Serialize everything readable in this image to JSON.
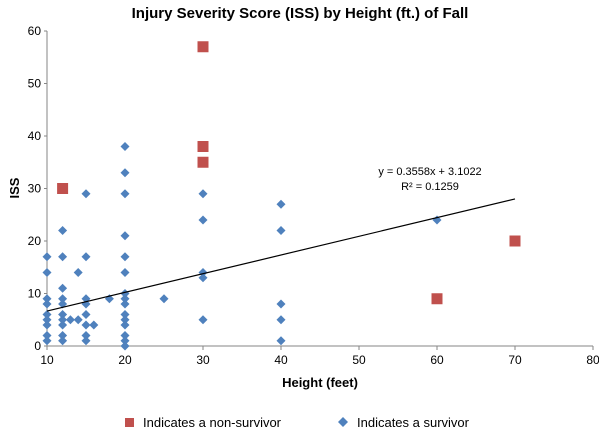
{
  "chart_data": {
    "type": "scatter",
    "title": "Injury Severity Score (ISS) by Height (ft.) of Fall",
    "xlabel": "Height (feet)",
    "ylabel": "ISS",
    "xlim": [
      10,
      80
    ],
    "ylim": [
      0,
      60
    ],
    "xticks": [
      "10",
      "20",
      "30",
      "40",
      "50",
      "60",
      "70",
      "80"
    ],
    "yticks": [
      "0",
      "10",
      "20",
      "30",
      "40",
      "50",
      "60"
    ],
    "grid": false,
    "legend_position": "bottom",
    "series": [
      {
        "name": "Indicates a non-survivor",
        "marker": "square",
        "color": "#c0504d",
        "points": [
          {
            "x": 12,
            "y": 30
          },
          {
            "x": 30,
            "y": 57
          },
          {
            "x": 30,
            "y": 38
          },
          {
            "x": 30,
            "y": 35
          },
          {
            "x": 60,
            "y": 9
          },
          {
            "x": 70,
            "y": 20
          }
        ]
      },
      {
        "name": "Indicates a survivor",
        "marker": "diamond",
        "color": "#4f81bd",
        "points": [
          {
            "x": 10,
            "y": 17
          },
          {
            "x": 10,
            "y": 14
          },
          {
            "x": 10,
            "y": 9
          },
          {
            "x": 10,
            "y": 8
          },
          {
            "x": 10,
            "y": 6
          },
          {
            "x": 10,
            "y": 5
          },
          {
            "x": 10,
            "y": 4
          },
          {
            "x": 10,
            "y": 2
          },
          {
            "x": 10,
            "y": 1
          },
          {
            "x": 12,
            "y": 22
          },
          {
            "x": 12,
            "y": 17
          },
          {
            "x": 12,
            "y": 11
          },
          {
            "x": 12,
            "y": 9
          },
          {
            "x": 12,
            "y": 8
          },
          {
            "x": 12,
            "y": 6
          },
          {
            "x": 12,
            "y": 5
          },
          {
            "x": 12,
            "y": 4
          },
          {
            "x": 12,
            "y": 2
          },
          {
            "x": 12,
            "y": 1
          },
          {
            "x": 13,
            "y": 5
          },
          {
            "x": 14,
            "y": 14
          },
          {
            "x": 14,
            "y": 5
          },
          {
            "x": 15,
            "y": 29
          },
          {
            "x": 15,
            "y": 17
          },
          {
            "x": 15,
            "y": 9
          },
          {
            "x": 15,
            "y": 8
          },
          {
            "x": 15,
            "y": 6
          },
          {
            "x": 15,
            "y": 4
          },
          {
            "x": 15,
            "y": 2
          },
          {
            "x": 15,
            "y": 1
          },
          {
            "x": 16,
            "y": 4
          },
          {
            "x": 18,
            "y": 9
          },
          {
            "x": 20,
            "y": 38
          },
          {
            "x": 20,
            "y": 33
          },
          {
            "x": 20,
            "y": 29
          },
          {
            "x": 20,
            "y": 21
          },
          {
            "x": 20,
            "y": 17
          },
          {
            "x": 20,
            "y": 14
          },
          {
            "x": 20,
            "y": 10
          },
          {
            "x": 20,
            "y": 9
          },
          {
            "x": 20,
            "y": 8
          },
          {
            "x": 20,
            "y": 6
          },
          {
            "x": 20,
            "y": 5
          },
          {
            "x": 20,
            "y": 4
          },
          {
            "x": 20,
            "y": 2
          },
          {
            "x": 20,
            "y": 1
          },
          {
            "x": 20,
            "y": 0
          },
          {
            "x": 25,
            "y": 9
          },
          {
            "x": 30,
            "y": 29
          },
          {
            "x": 30,
            "y": 24
          },
          {
            "x": 30,
            "y": 14
          },
          {
            "x": 30,
            "y": 13
          },
          {
            "x": 30,
            "y": 5
          },
          {
            "x": 40,
            "y": 27
          },
          {
            "x": 40,
            "y": 22
          },
          {
            "x": 40,
            "y": 8
          },
          {
            "x": 40,
            "y": 5
          },
          {
            "x": 40,
            "y": 1
          },
          {
            "x": 60,
            "y": 24
          }
        ]
      }
    ],
    "trendline": {
      "slope": 0.3558,
      "intercept": 3.1022,
      "x_range": [
        10,
        70
      ],
      "color": "#000000",
      "equation": "y = 0.3558x + 3.1022",
      "r2_label": "R² = 0.1259"
    }
  }
}
